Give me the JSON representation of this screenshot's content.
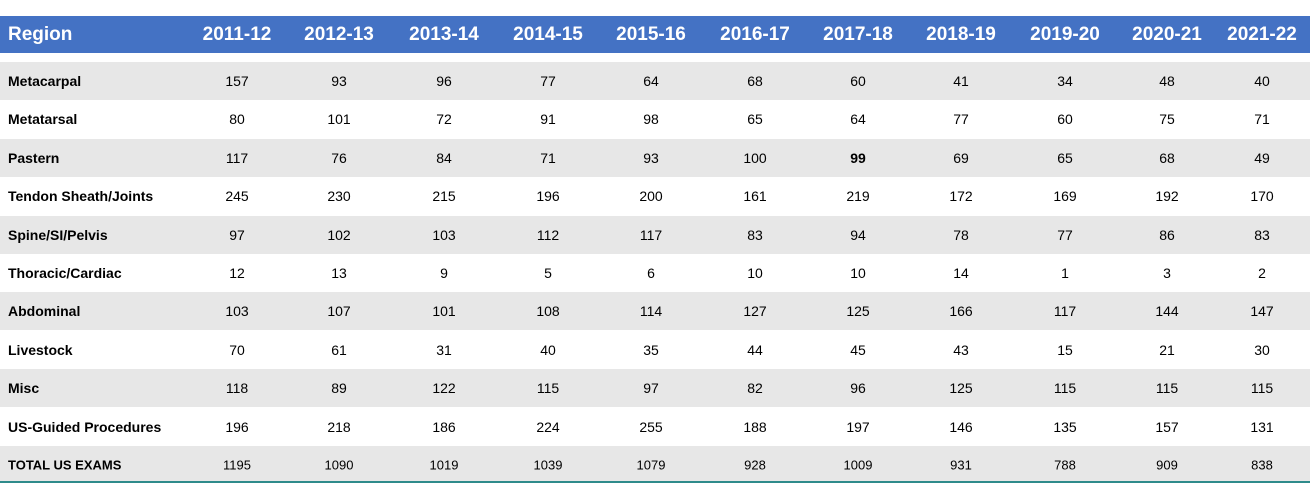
{
  "table": {
    "columns": [
      "Region",
      "2011-12",
      "2012-13",
      "2013-14",
      "2014-15",
      "2015-16",
      "2016-17",
      "2017-18",
      "2018-19",
      "2019-20",
      "2020-21",
      "2021-22"
    ],
    "rows": [
      [
        "Metacarpal",
        157,
        93,
        96,
        77,
        64,
        68,
        60,
        41,
        34,
        48,
        40
      ],
      [
        "Metatarsal",
        80,
        101,
        72,
        91,
        98,
        65,
        64,
        77,
        60,
        75,
        71
      ],
      [
        "Pastern",
        117,
        76,
        84,
        71,
        93,
        100,
        99,
        69,
        65,
        68,
        49
      ],
      [
        "Tendon Sheath/Joints",
        245,
        230,
        215,
        196,
        200,
        161,
        219,
        172,
        169,
        192,
        170
      ],
      [
        "Spine/SI/Pelvis",
        97,
        102,
        103,
        112,
        117,
        83,
        94,
        78,
        77,
        86,
        83
      ],
      [
        "Thoracic/Cardiac",
        12,
        13,
        9,
        5,
        6,
        10,
        10,
        14,
        1,
        3,
        2
      ],
      [
        "Abdominal",
        103,
        107,
        101,
        108,
        114,
        127,
        125,
        166,
        117,
        144,
        147
      ],
      [
        "Livestock",
        70,
        61,
        31,
        40,
        35,
        44,
        45,
        43,
        15,
        21,
        30
      ],
      [
        "Misc",
        118,
        89,
        122,
        115,
        97,
        82,
        96,
        125,
        115,
        115,
        115
      ],
      [
        "US-Guided Procedures",
        196,
        218,
        186,
        224,
        255,
        188,
        197,
        146,
        135,
        157,
        131
      ],
      [
        "TOTAL US EXAMS",
        1195,
        1090,
        1019,
        1039,
        1079,
        928,
        1009,
        931,
        788,
        909,
        838
      ]
    ],
    "bold_cells": [
      [
        2,
        7
      ]
    ]
  }
}
